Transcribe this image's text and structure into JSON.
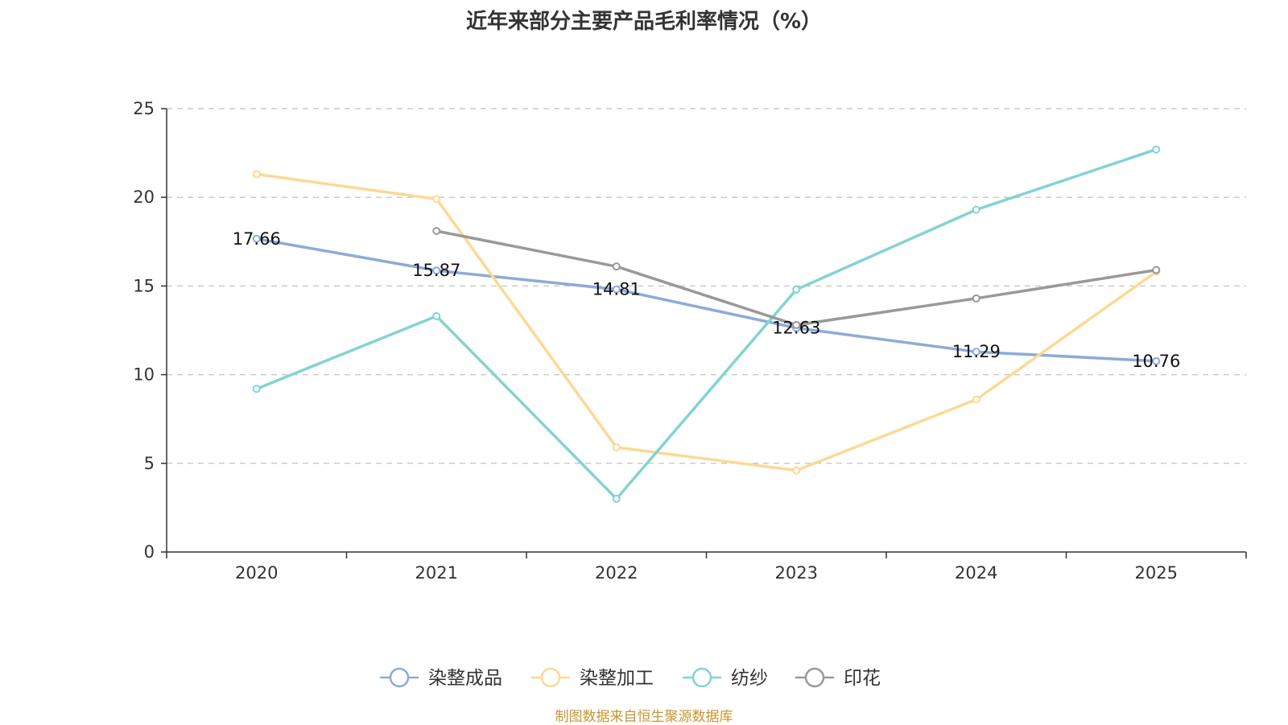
{
  "chart_data": {
    "type": "line",
    "title": "近年来部分主要产品毛利率情况（%）",
    "categories": [
      "2020",
      "2021",
      "2022",
      "2023",
      "2024",
      "2025"
    ],
    "ylim": [
      0,
      25
    ],
    "yticks": [
      0,
      5,
      10,
      15,
      20,
      25
    ],
    "grid": true,
    "legend_position": "bottom",
    "series": [
      {
        "name": "染整成品",
        "color": "#8eaad9",
        "values": [
          17.66,
          15.87,
          14.81,
          12.63,
          11.29,
          10.76
        ],
        "show_labels": true
      },
      {
        "name": "染整加工",
        "color": "#fcd995",
        "values": [
          21.3,
          19.9,
          5.9,
          4.6,
          8.6,
          15.8
        ],
        "show_labels": false
      },
      {
        "name": "纺纱",
        "color": "#83d3d4",
        "values": [
          9.2,
          13.3,
          3.0,
          14.8,
          19.3,
          22.7
        ],
        "show_labels": false
      },
      {
        "name": "印花",
        "color": "#999999",
        "values": [
          null,
          18.1,
          16.1,
          12.8,
          14.3,
          15.9
        ],
        "show_labels": false
      }
    ]
  },
  "source_note": "制图数据来自恒生聚源数据库"
}
